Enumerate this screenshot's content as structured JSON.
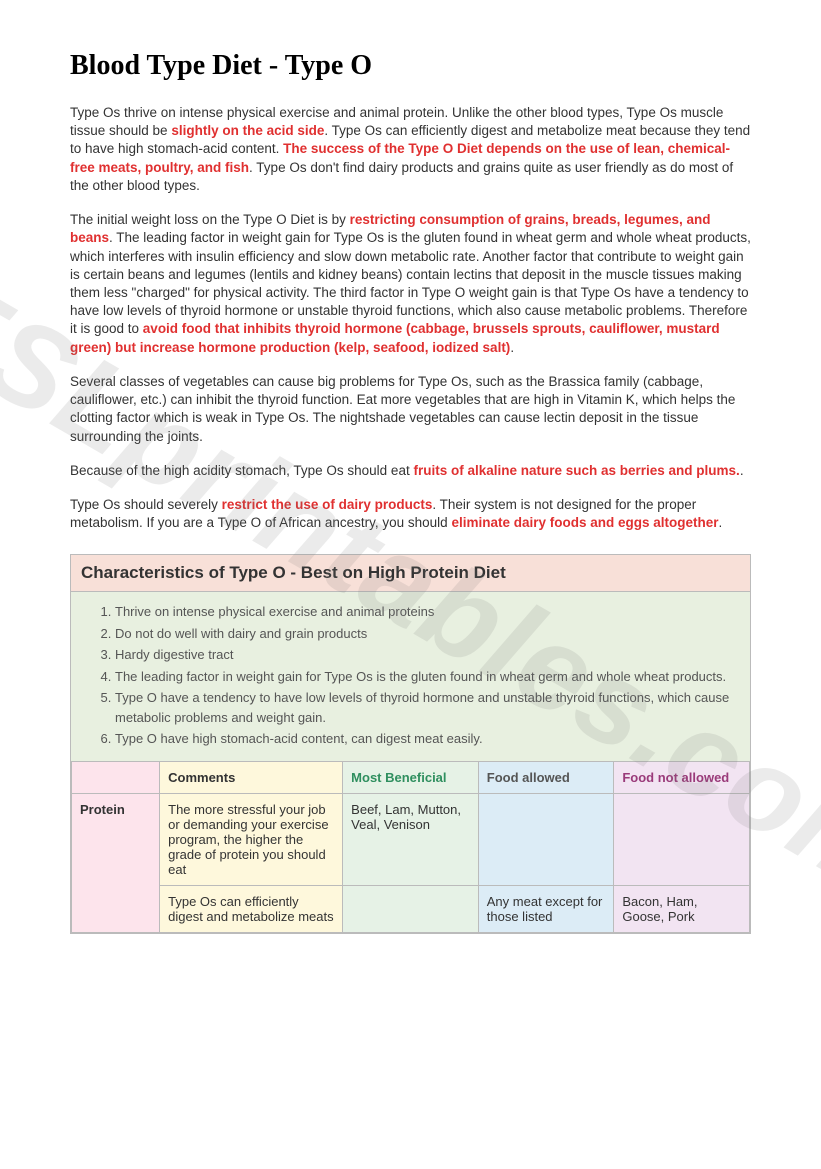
{
  "title": "Blood Type Diet - Type O",
  "watermark": "ESLprintables.com",
  "paragraphs": {
    "p1": {
      "t1": "Type Os thrive on intense physical exercise and animal protein. Unlike the other blood types, Type Os muscle tissue should be ",
      "h1": "slightly on the acid side",
      "t2": ". Type Os can efficiently digest and metabolize meat because they tend to have high stomach-acid content. ",
      "h2": "The success of the Type O Diet depends on the use of lean, chemical-free meats, poultry, and fish",
      "t3": ". Type Os don't find dairy products and grains quite as user friendly as do most of the other blood types."
    },
    "p2": {
      "t1": "The initial weight loss on the Type O Diet is by ",
      "h1": "restricting consumption of grains, breads, legumes, and beans",
      "t2": ". The leading factor in weight gain for Type Os is the gluten found in wheat germ and whole wheat products, which interferes with insulin efficiency and slow down metabolic rate. Another factor that contribute to weight gain is certain beans and legumes (lentils and kidney beans) contain lectins that deposit in the muscle tissues making them less \"charged\" for physical activity. The third factor in Type O weight gain is that Type Os have a tendency to have low levels of thyroid hormone or unstable thyroid functions, which also cause metabolic problems. Therefore it is good to ",
      "h2": "avoid food that inhibits thyroid hormone (cabbage, brussels sprouts, cauliflower, mustard green) but increase hormone production (kelp, seafood, iodized salt)",
      "t3": "."
    },
    "p3": {
      "t1": "Several classes of vegetables can cause big problems for Type Os, such as the Brassica family (cabbage, cauliflower, etc.) can inhibit the thyroid function. Eat more vegetables that are high in Vitamin K, which helps the clotting factor which is weak in Type Os. The nightshade vegetables can cause lectin deposit in the tissue surrounding the joints."
    },
    "p4": {
      "t1": "Because of the high acidity stomach, Type Os should eat ",
      "h1": "fruits of alkaline nature such as berries and plums.",
      "t2": "."
    },
    "p5": {
      "t1": "Type Os should severely ",
      "h1": "restrict the use of dairy products",
      "t2": ". Their system is not designed for the proper metabolism. If you are a Type O of African ancestry, you should ",
      "h2": "eliminate dairy foods and eggs altogether",
      "t3": "."
    }
  },
  "box": {
    "header": "Characteristics of Type O - Best on High Protein Diet",
    "items": [
      "Thrive on intense physical exercise and animal proteins",
      "Do not do well with dairy and grain products",
      "Hardy digestive tract",
      "The leading factor in weight gain for Type Os is the gluten found in wheat germ and whole wheat products.",
      "Type O have a tendency to have low levels of thyroid hormone and unstable thyroid functions, which cause metabolic problems and weight gain.",
      "Type O have high stomach-acid content, can digest meat easily."
    ]
  },
  "table": {
    "headers": {
      "comments": "Comments",
      "beneficial": "Most Beneficial",
      "allowed": "Food allowed",
      "notallowed": "Food not allowed"
    },
    "rows": [
      {
        "cat": "Protein",
        "comments": "The more stressful your job or demanding your exercise program, the higher the grade of protein you should eat",
        "beneficial": "Beef, Lam, Mutton, Veal, Venison",
        "allowed": "",
        "notallowed": ""
      },
      {
        "cat": "",
        "comments": "Type Os can efficiently digest and metabolize meats",
        "beneficial": "",
        "allowed": "Any meat except for those listed",
        "notallowed": "Bacon, Ham, Goose, Pork"
      }
    ]
  },
  "colors": {
    "highlight": "#e03030",
    "box_header_bg": "#f8e0d8",
    "char_list_bg": "#e8f0e0",
    "col_cat": "#fde4ec",
    "col_comments": "#fef8dc",
    "col_beneficial": "#e6f2e6",
    "col_allowed": "#dcecf6",
    "col_notallowed": "#f2e4f2",
    "border": "#bbbbbb"
  },
  "fonts": {
    "title_family": "Times New Roman",
    "title_size_pt": 21,
    "body_family": "Arial",
    "body_size_pt": 10
  }
}
